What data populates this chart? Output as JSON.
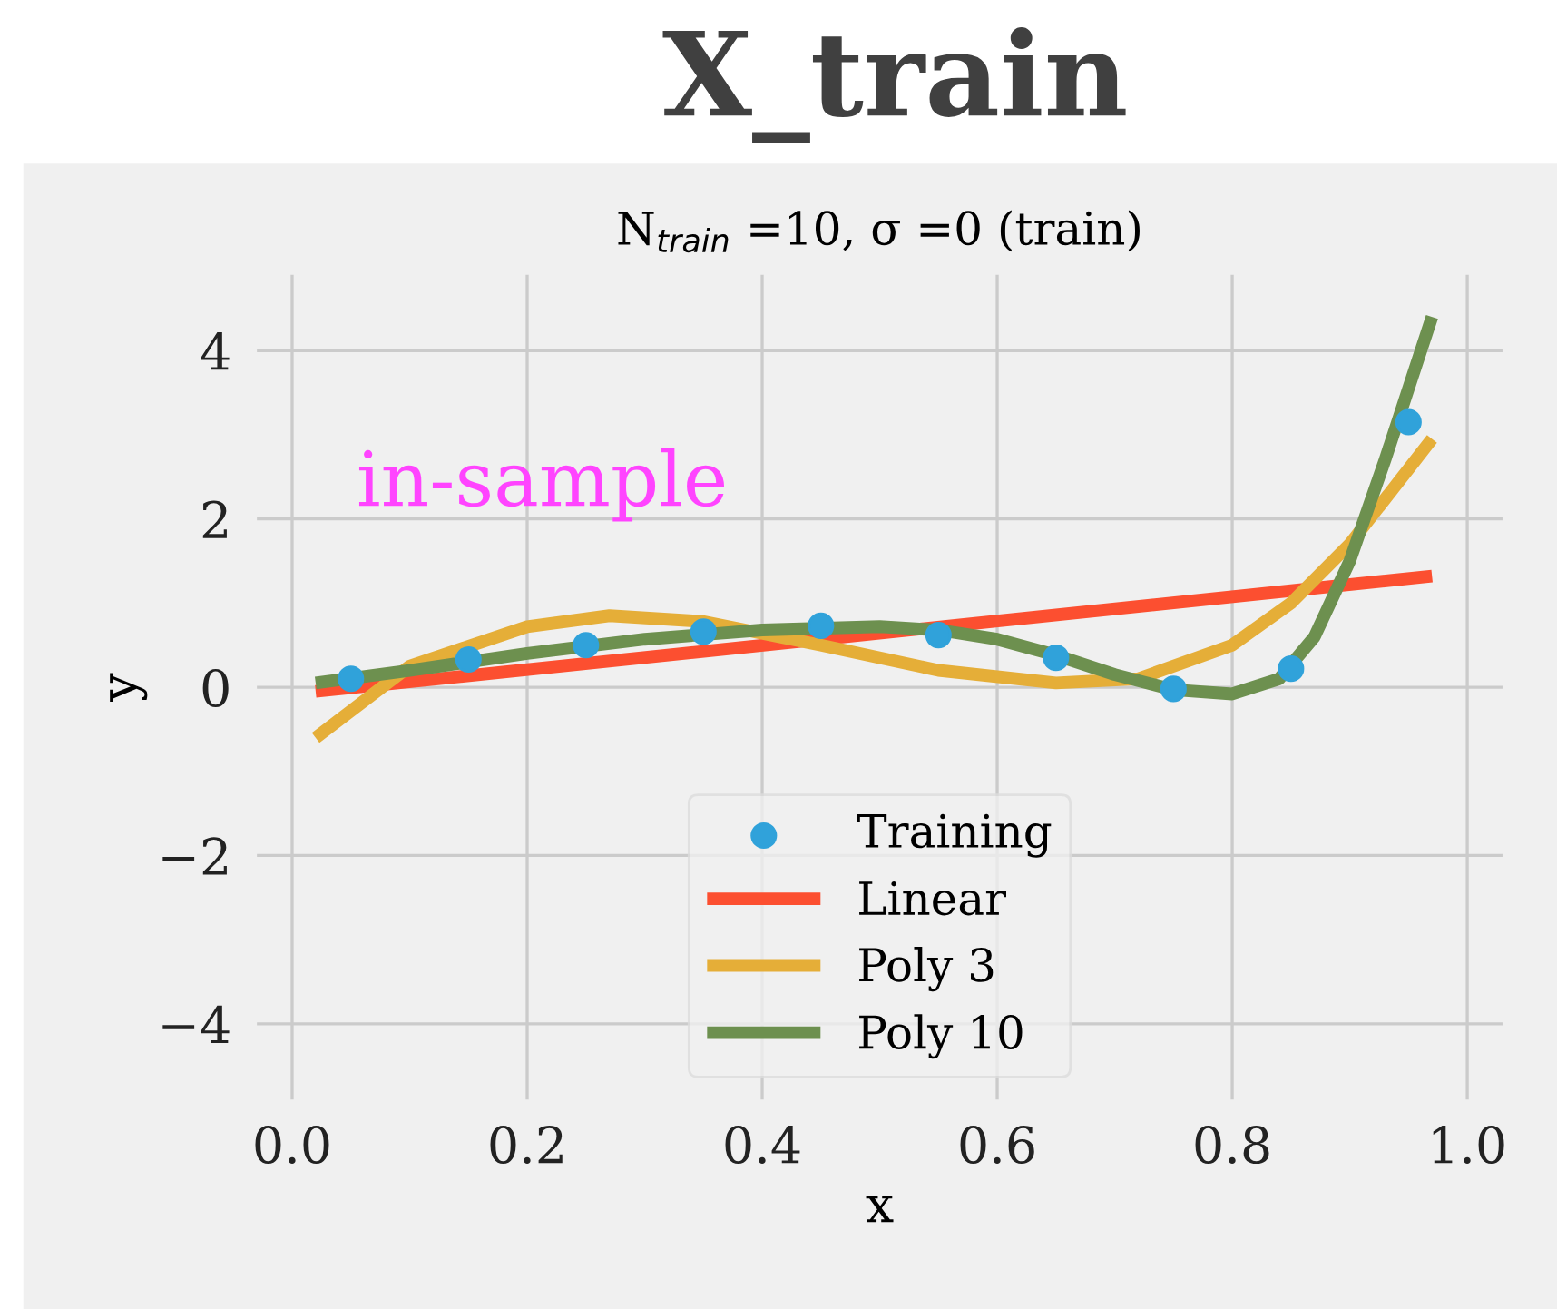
{
  "chart_data": {
    "type": "line",
    "title": "X_train",
    "subtitle": "N$_{train}$ =10, σ =0 (train)",
    "xlabel": "x",
    "ylabel": "y",
    "annotations": [
      "in-sample"
    ],
    "xlim": [
      -0.03,
      1.03
    ],
    "ylim": [
      -4.9,
      4.9
    ],
    "xticks": [
      {
        "value": 0,
        "label": "0.0"
      },
      0.2,
      0.4,
      0.6,
      0.8,
      {
        "value": 1,
        "label": "1.0"
      }
    ],
    "yticks": [
      {
        "value": -4,
        "label": "−4"
      },
      {
        "value": -2,
        "label": "−2"
      },
      0,
      2,
      4
    ],
    "grid": true,
    "legend": "bottom",
    "series": [
      {
        "name": "Training",
        "type": "scatter",
        "marker": "circle",
        "color": "#30a2da",
        "x": [
          0.05,
          0.15,
          0.25,
          0.35,
          0.45,
          0.55,
          0.65,
          0.75,
          0.85,
          0.95
        ],
        "values": [
          0.1,
          0.33,
          0.5,
          0.66,
          0.73,
          0.62,
          0.35,
          -0.02,
          0.22,
          3.15
        ]
      },
      {
        "name": "Linear",
        "color": "#fc4f30",
        "x": [
          0.02,
          0.97
        ],
        "values": [
          -0.05,
          1.32
        ]
      },
      {
        "name": "Poly 3",
        "color": "#e5ae38",
        "x": [
          0.02,
          0.1,
          0.2,
          0.27,
          0.35,
          0.45,
          0.55,
          0.65,
          0.72,
          0.8,
          0.85,
          0.9,
          0.97
        ],
        "values": [
          -0.6,
          0.25,
          0.72,
          0.85,
          0.78,
          0.5,
          0.2,
          0.05,
          0.1,
          0.5,
          1.0,
          1.7,
          2.95
        ]
      },
      {
        "name": "Poly 10",
        "color": "#6d904f",
        "x": [
          0.02,
          0.1,
          0.2,
          0.3,
          0.4,
          0.5,
          0.55,
          0.6,
          0.65,
          0.7,
          0.75,
          0.8,
          0.84,
          0.87,
          0.9,
          0.93,
          0.97
        ],
        "values": [
          0.05,
          0.2,
          0.4,
          0.57,
          0.68,
          0.72,
          0.68,
          0.57,
          0.38,
          0.15,
          -0.03,
          -0.08,
          0.1,
          0.6,
          1.5,
          2.7,
          4.4
        ]
      }
    ]
  }
}
